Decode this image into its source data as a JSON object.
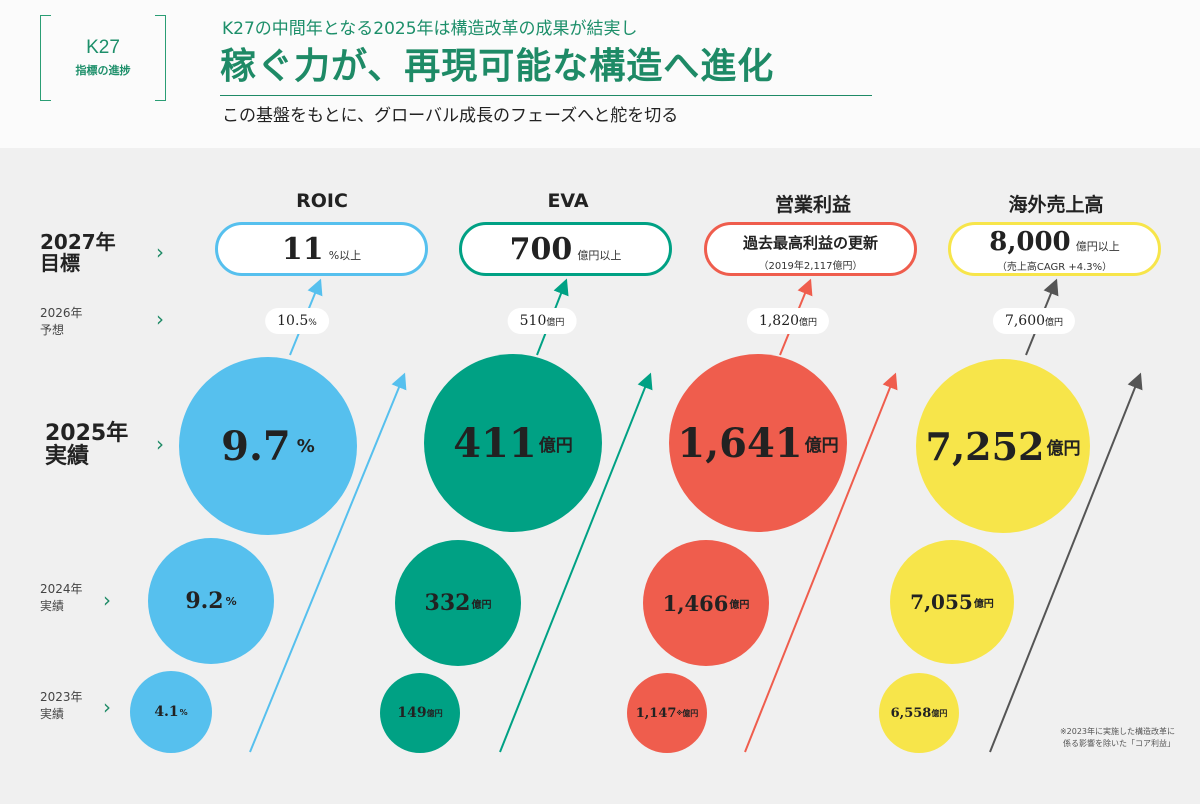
{
  "header": {
    "badge_title": "K27",
    "badge_sub": "指標の進捗",
    "lead": "K27の中間年となる2025年は構造改革の成果が結実し",
    "headline": "稼ぐ力が、再現可能な構造へ進化",
    "subhead": "この基盤をもとに、グローバル成長のフェーズへと舵を切る"
  },
  "rows": {
    "target": "2027年\n目標",
    "forecast": "2026年\n予想",
    "actual_2025": "2025年\n実績",
    "actual_2024": "2024年\n実績",
    "actual_2023": "2023年\n実績",
    "chevron": "›"
  },
  "colors": {
    "roic": "#56c0ee",
    "eva": "#00a184",
    "op": "#ef5d4d",
    "overseas": "#f7e54a",
    "accent": "#1e8a66"
  },
  "chart_data": {
    "type": "bubble",
    "columns": [
      {
        "key": "roic",
        "title": "ROIC",
        "target_main": "11",
        "target_unit": "%以上",
        "forecast_2026": "10.5",
        "forecast_unit": "%",
        "values": [
          {
            "year": 2025,
            "value": 9.7,
            "label": "9.7",
            "unit": "%"
          },
          {
            "year": 2024,
            "value": 9.2,
            "label": "9.2",
            "unit": "%"
          },
          {
            "year": 2023,
            "value": 4.1,
            "label": "4.1",
            "unit": "%"
          }
        ]
      },
      {
        "key": "eva",
        "title": "EVA",
        "target_main": "700",
        "target_unit": "億円以上",
        "forecast_2026": "510",
        "forecast_unit": "億円",
        "values": [
          {
            "year": 2025,
            "value": 411,
            "label": "411",
            "unit": "億円"
          },
          {
            "year": 2024,
            "value": 332,
            "label": "332",
            "unit": "億円"
          },
          {
            "year": 2023,
            "value": 149,
            "label": "149",
            "unit": "億円"
          }
        ]
      },
      {
        "key": "op",
        "title": "営業利益",
        "target_line1": "過去最高利益の更新",
        "target_line2": "（2019年2,117億円）",
        "forecast_2026": "1,820",
        "forecast_unit": "億円",
        "values": [
          {
            "year": 2025,
            "value": 1641,
            "label": "1,641",
            "unit": "億円"
          },
          {
            "year": 2024,
            "value": 1466,
            "label": "1,466",
            "unit": "億円"
          },
          {
            "year": 2023,
            "value": 1147,
            "label": "1,147",
            "unit": "億円",
            "note_mark": "※"
          }
        ]
      },
      {
        "key": "overseas",
        "title": "海外売上高",
        "target_main": "8,000",
        "target_unit": "億円以上",
        "target_line2": "（売上高CAGR +4.3%）",
        "forecast_2026": "7,600",
        "forecast_unit": "億円",
        "values": [
          {
            "year": 2025,
            "value": 7252,
            "label": "7,252",
            "unit": "億円"
          },
          {
            "year": 2024,
            "value": 7055,
            "label": "7,055",
            "unit": "億円"
          },
          {
            "year": 2023,
            "value": 6558,
            "label": "6,558",
            "unit": "億円"
          }
        ]
      }
    ]
  },
  "footnote": {
    "line1": "※2023年に実施した構造改革に",
    "line2": "係る影響を除いた「コア利益」"
  }
}
